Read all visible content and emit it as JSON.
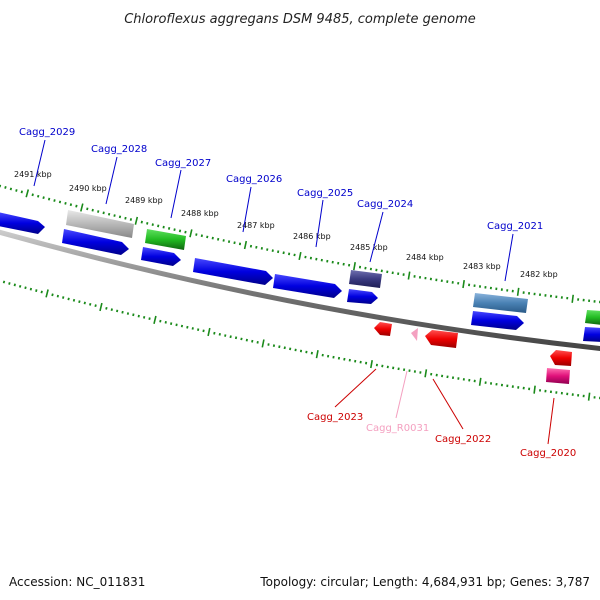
{
  "title": "Chloroflexus aggregans DSM 9485, complete genome",
  "accession": "Accession: NC_011831",
  "summary": "Topology: circular; Length: 4,684,931 bp; Genes: 3,787",
  "kbp_labels": [
    "2491 kbp",
    "2490 kbp",
    "2489 kbp",
    "2488 kbp",
    "2487 kbp",
    "2486 kbp",
    "2485 kbp",
    "2484 kbp",
    "2483 kbp",
    "2482 kbp"
  ],
  "genes_top": [
    {
      "label": "Cagg_2029",
      "color": "#0000cc"
    },
    {
      "label": "Cagg_2028",
      "color": "#0000cc"
    },
    {
      "label": "Cagg_2027",
      "color": "#0000cc"
    },
    {
      "label": "Cagg_2026",
      "color": "#0000cc"
    },
    {
      "label": "Cagg_2025",
      "color": "#0000cc"
    },
    {
      "label": "Cagg_2024",
      "color": "#0000cc"
    },
    {
      "label": "Cagg_2021",
      "color": "#0000cc"
    }
  ],
  "genes_bottom": [
    {
      "label": "Cagg_2023",
      "color": "#cc0000"
    },
    {
      "label": "Cagg_R0031",
      "color": "#f4a0c0"
    },
    {
      "label": "Cagg_2022",
      "color": "#cc0000"
    },
    {
      "label": "Cagg_2020",
      "color": "#cc0000"
    }
  ],
  "colors": {
    "forward_cds": "#0000e0",
    "reverse_cds": "#ee0000",
    "rna": "#f4a0c0",
    "tick": "#1a8a1a",
    "backbone": "#888888"
  }
}
